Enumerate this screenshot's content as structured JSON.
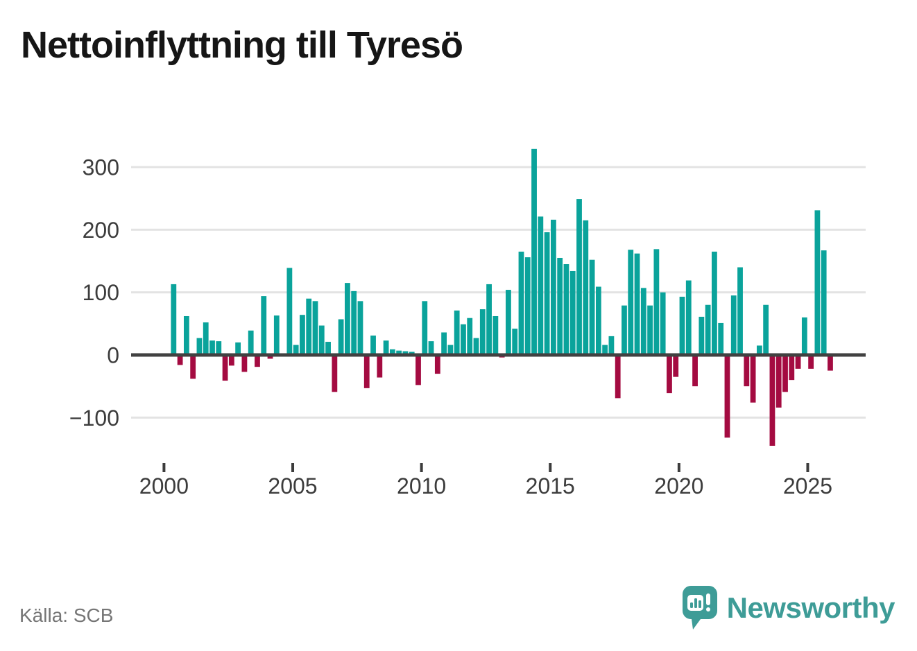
{
  "title": "Nettoinflyttning till Tyresö",
  "source": "Källa: SCB",
  "branding": {
    "logo_text": "Newsworthy",
    "logo_icon": "bar-chart-speech-bubble-icon"
  },
  "colors": {
    "positive_bar": "#0aa39b",
    "negative_bar": "#a40b41",
    "gridline": "#e3e3e3",
    "zero_line": "#414141",
    "axis_text": "#3c3c3c",
    "title_text": "#161616",
    "source_text": "#757575",
    "brand_teal": "#3e9c97",
    "background": "#ffffff"
  },
  "chart_data": {
    "type": "bar",
    "title": "Nettoinflyttning till Tyresö",
    "unit": "persons (net migration per quarter)",
    "frequency": "quarterly",
    "start_period": "2000-Q1",
    "end_period": "2025-Q4",
    "x_tick_years": [
      2000,
      2005,
      2010,
      2015,
      2020,
      2025
    ],
    "x_tick_labels": [
      "2000",
      "2005",
      "2010",
      "2015",
      "2020",
      "2025"
    ],
    "y_ticks": [
      300,
      200,
      100,
      0,
      -100
    ],
    "y_tick_labels": [
      "300",
      "200",
      "100",
      "0",
      "−100"
    ],
    "ylim": [
      -160,
      345
    ],
    "grid": "horizontal",
    "legend": "none",
    "values": [
      0,
      113,
      -16,
      62,
      -38,
      27,
      52,
      23,
      22,
      -41,
      -17,
      20,
      -27,
      39,
      -19,
      94,
      -6,
      63,
      0,
      139,
      16,
      64,
      90,
      86,
      47,
      21,
      -59,
      57,
      115,
      102,
      86,
      -53,
      31,
      -36,
      23,
      9,
      7,
      6,
      5,
      -48,
      86,
      22,
      -30,
      36,
      16,
      71,
      49,
      59,
      27,
      73,
      113,
      62,
      -4,
      104,
      42,
      165,
      156,
      329,
      221,
      196,
      216,
      155,
      145,
      134,
      249,
      215,
      152,
      109,
      16,
      30,
      -69,
      79,
      168,
      162,
      107,
      79,
      169,
      100,
      -61,
      -35,
      93,
      119,
      -50,
      61,
      80,
      165,
      51,
      -132,
      95,
      140,
      -50,
      -76,
      15,
      80,
      -145,
      -84,
      -59,
      -40,
      -22,
      60,
      -22,
      231,
      167,
      -25
    ]
  }
}
